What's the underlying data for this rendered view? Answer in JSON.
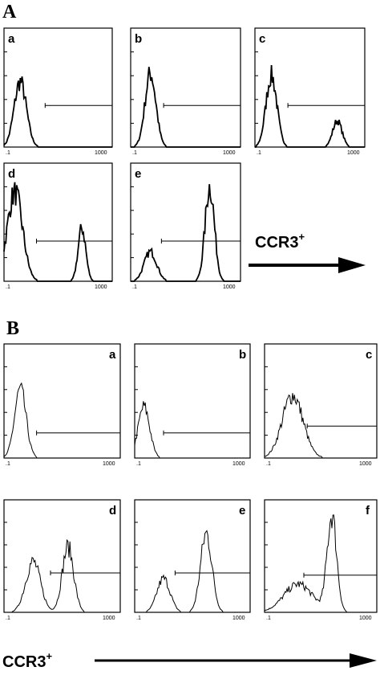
{
  "panel_a": {
    "label": "A",
    "plots": [
      {
        "label": "a",
        "x_min_label": ".1",
        "x_max_label": "1000"
      },
      {
        "label": "b",
        "x_min_label": ".1",
        "x_max_label": "1000"
      },
      {
        "label": "c",
        "x_min_label": ".1",
        "x_max_label": "1000"
      },
      {
        "label": "d",
        "x_min_label": ".1",
        "x_max_label": "1000"
      },
      {
        "label": "e",
        "x_min_label": ".1",
        "x_max_label": "1000"
      }
    ],
    "arrow_label": "CCR3",
    "arrow_label_sup": "+"
  },
  "panel_b": {
    "label": "B",
    "plots": [
      {
        "label": "a",
        "x_min_label": ".1",
        "x_max_label": "1000"
      },
      {
        "label": "b",
        "x_min_label": ".1",
        "x_max_label": "1000"
      },
      {
        "label": "c",
        "x_min_label": ".1",
        "x_max_label": "1000"
      },
      {
        "label": "d",
        "x_min_label": ".1",
        "x_max_label": "1000"
      },
      {
        "label": "e",
        "x_min_label": ".1",
        "x_max_label": "1000"
      },
      {
        "label": "f",
        "x_min_label": ".1",
        "x_max_label": "1000"
      }
    ],
    "arrow_label": "CCR3",
    "arrow_label_sup": "+"
  }
}
